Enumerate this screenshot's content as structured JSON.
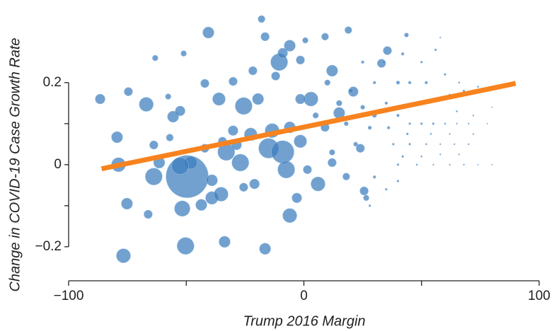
{
  "chart_data": {
    "type": "scatter",
    "xlabel": "Trump 2016 Margin",
    "ylabel": "Change in COVID-19 Case Growth Rate",
    "xlim": [
      -100,
      100
    ],
    "ylim": [
      -0.283,
      0.36
    ],
    "xticks": [
      {
        "value": -100,
        "label": "−100"
      },
      0,
      100
    ],
    "minor_xticks": [
      -50,
      50
    ],
    "yticks": [
      {
        "value": -0.2,
        "label": "−0.2"
      },
      0,
      0.2
    ],
    "minor_yticks": [
      -0.1,
      0.1
    ],
    "color": "#3b7dbd",
    "x": [
      -49.6,
      -76.7,
      -50.3,
      -86.6,
      -67,
      -79.4,
      -78.8,
      -75.2,
      -66.2,
      -63.8,
      -51.7,
      -43.6,
      -39.1,
      -35.2,
      -33.7,
      -16.5,
      -40.6,
      -18,
      -16.5,
      -25.6,
      -33,
      -27,
      -15,
      -9,
      -7.5,
      -10.5,
      -6,
      6,
      -3,
      3,
      -39.1,
      -55.6,
      -52.6,
      -42.1,
      -36.1,
      -30.1,
      -22.6,
      -28.6,
      -42.1,
      -48.1,
      -52.6,
      -61.5,
      -63.8,
      -74.6,
      -63.2,
      -51.1,
      -57.7,
      -57,
      -6,
      -9,
      -1.5,
      9,
      12,
      18,
      24,
      25.6,
      33,
      35.5,
      18.9,
      0.6,
      9,
      43.6,
      26.5,
      12,
      15,
      21,
      1.5,
      -21,
      -25.6,
      -30.1,
      -34.6,
      -21.7,
      -12,
      -19.5,
      -1.5,
      -6,
      -13.5,
      -1.5,
      25,
      30,
      35,
      40,
      45,
      50,
      55,
      60,
      65,
      70,
      38,
      45,
      52,
      58,
      64,
      70,
      40,
      48,
      55,
      62,
      68,
      74,
      80,
      42,
      50,
      58,
      66,
      44,
      54,
      62,
      72,
      48,
      56,
      62,
      68,
      74,
      60,
      66,
      52,
      40,
      34,
      42,
      50,
      56,
      58,
      30,
      35,
      28,
      40,
      25,
      30,
      20,
      18,
      10,
      15,
      22,
      12,
      5,
      28,
      36,
      45,
      65,
      72,
      78,
      80
    ],
    "values": [
      -0.029,
      -0.222,
      -0.198,
      0.16,
      0.147,
      0.067,
      0,
      -0.095,
      -0.121,
      -0.029,
      -0.107,
      -0.098,
      -0.081,
      -0.072,
      -0.188,
      -0.205,
      0.322,
      0.355,
      0.312,
      0.143,
      0.031,
      0.005,
      0.04,
      0.031,
      -0.012,
      0.25,
      -0.124,
      -0.047,
      -0.081,
      0.16,
      -0.038,
      0.117,
      0.131,
      0.198,
      0.16,
      0.203,
      0.074,
      0.048,
      0.04,
      0.005,
      -0.003,
      0.005,
      0.048,
      0.178,
      0.26,
      0.271,
      0.166,
      0.066,
      0.29,
      0.272,
      0.255,
      0.091,
      0.005,
      -0.029,
      0.04,
      -0.064,
      0.247,
      0.278,
      0.328,
      0.303,
      0.312,
      0.316,
      -0.081,
      0.229,
      0.126,
      0.178,
      -0.012,
      -0.047,
      -0.055,
      0.083,
      0.057,
      0.229,
      0.216,
      0.16,
      0.16,
      0.091,
      0.083,
      0.057,
      0.25,
      0.2,
      0.15,
      0.12,
      0.1,
      0.1,
      0.1,
      0.1,
      0.1,
      0.1,
      0.05,
      0.05,
      0.05,
      0.05,
      0.05,
      0.05,
      0,
      0,
      0,
      0,
      0,
      0,
      0,
      0.02,
      0.02,
      0.025,
      0.025,
      0.075,
      0.075,
      0.075,
      0.075,
      0.15,
      0.16,
      0.17,
      0.18,
      0.19,
      0.22,
      0.2,
      0.2,
      0.2,
      0.25,
      0.27,
      0.25,
      0.28,
      0.31,
      -0.03,
      -0.06,
      -0.1,
      -0.04,
      0.14,
      0.12,
      0.18,
      0.1,
      0.2,
      0.15,
      0.05,
      0.03,
      0.12,
      0.09,
      0.09,
      0.2,
      0.13,
      0.12,
      0.1,
      0.14
    ],
    "sizes": [
      30,
      10,
      12,
      7,
      10,
      8,
      10,
      8,
      6,
      12,
      11,
      8,
      9,
      10,
      8,
      8,
      8,
      5,
      6,
      12,
      12,
      12,
      14,
      16,
      12,
      12,
      10,
      10,
      7,
      10,
      8,
      8,
      7,
      6,
      9,
      6,
      9,
      7,
      6,
      9,
      12,
      8,
      6,
      6,
      4,
      4,
      4,
      5,
      8,
      7,
      6,
      6,
      6,
      5,
      6,
      6,
      6,
      6,
      5,
      4,
      5,
      3,
      4,
      8,
      8,
      7,
      6,
      7,
      6,
      7,
      6,
      6,
      6,
      8,
      7,
      8,
      10,
      9,
      2,
      2,
      2,
      2,
      1.5,
      1.5,
      1.5,
      1.2,
      1,
      1,
      1.5,
      1.5,
      1.2,
      1,
      1,
      1,
      1.5,
      1.2,
      1,
      1,
      1,
      0.8,
      0.8,
      1.5,
      1.2,
      1,
      1,
      1.5,
      1.2,
      1,
      1,
      2,
      2,
      1.5,
      1.5,
      1.2,
      1.5,
      1.2,
      2,
      2.5,
      2,
      2,
      1.5,
      1.5,
      1,
      2,
      1.5,
      1.5,
      1.5,
      3,
      3,
      3,
      3,
      4,
      4,
      3,
      4,
      4,
      2.5,
      2,
      2,
      1.2,
      1,
      0.8,
      0.8
    ],
    "trend": {
      "x": [
        -86,
        90
      ],
      "y": [
        -0.01,
        0.198
      ],
      "color": "#f7831f"
    }
  }
}
